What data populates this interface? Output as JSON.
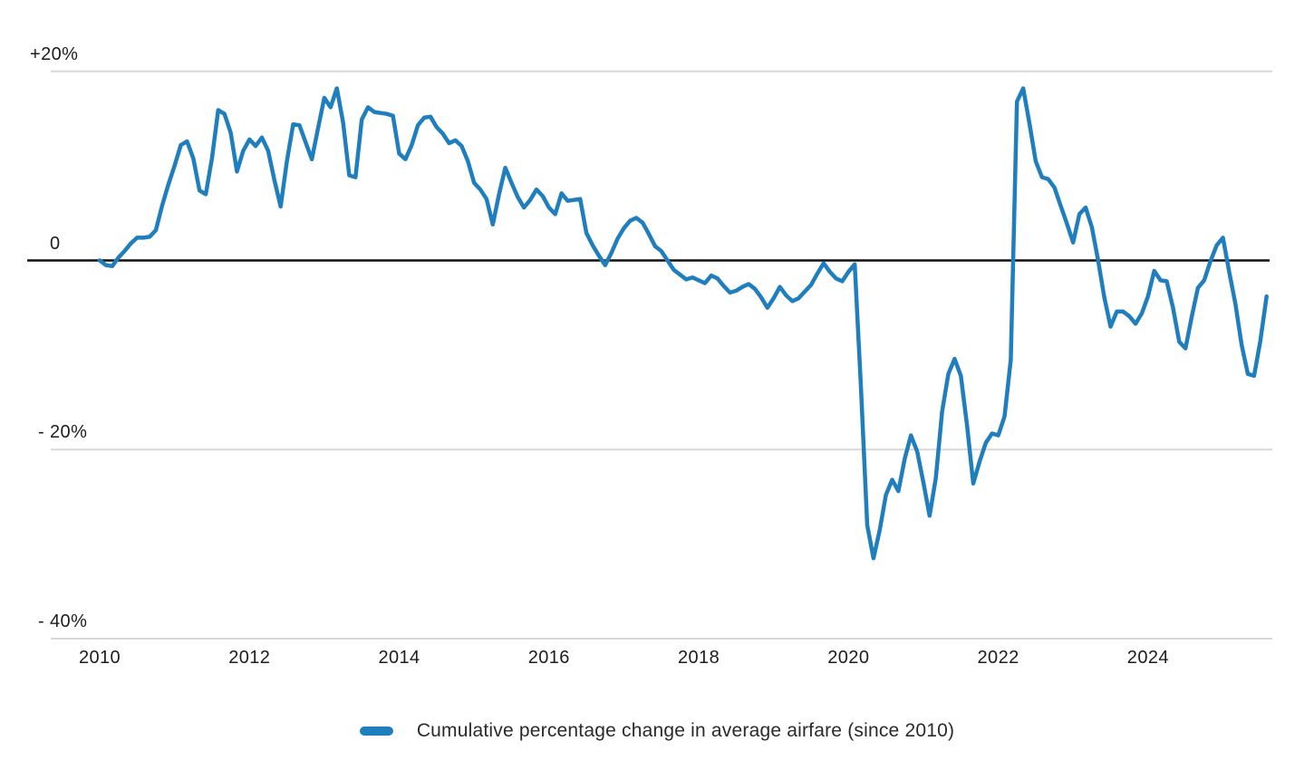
{
  "chart_data": {
    "type": "line",
    "title": "",
    "grid": "horizontal-only",
    "legend_position": "bottom-center",
    "x_axis": {
      "unit": "year",
      "ticks": [
        {
          "label": "2010",
          "month_index": 0
        },
        {
          "label": "2012",
          "month_index": 24
        },
        {
          "label": "2014",
          "month_index": 48
        },
        {
          "label": "2016",
          "month_index": 72
        },
        {
          "label": "2018",
          "month_index": 96
        },
        {
          "label": "2020",
          "month_index": 120
        },
        {
          "label": "2022",
          "month_index": 144
        },
        {
          "label": "2024",
          "month_index": 168
        }
      ]
    },
    "y_axis": {
      "unit": "percent",
      "range": [
        -42,
        22
      ],
      "ticks": [
        {
          "label": "+20%",
          "value": 20
        },
        {
          "label": "0",
          "value": 0
        },
        {
          "label": "- 20%",
          "value": -20
        },
        {
          "label": "- 40%",
          "value": -40
        }
      ]
    },
    "series": [
      {
        "name": "Cumulative percentage change in average airfare (since 2010)",
        "color": "#1f7ebd",
        "frequency": "monthly",
        "start_month": "2010-01",
        "end_month": "2025-08",
        "unit": "percent",
        "values": [
          0.0,
          -0.5,
          -0.6,
          0.3,
          1.0,
          1.8,
          2.4,
          2.4,
          2.5,
          3.2,
          5.8,
          8.0,
          10.0,
          12.2,
          12.6,
          10.8,
          7.4,
          7.0,
          10.8,
          15.9,
          15.5,
          13.5,
          9.4,
          11.6,
          12.8,
          12.1,
          13.0,
          11.6,
          8.5,
          5.7,
          10.5,
          14.4,
          14.3,
          12.5,
          10.7,
          14.0,
          17.2,
          16.2,
          18.2,
          14.6,
          9.0,
          8.8,
          14.9,
          16.2,
          15.7,
          15.6,
          15.5,
          15.3,
          11.3,
          10.7,
          12.2,
          14.3,
          15.1,
          15.2,
          14.1,
          13.4,
          12.4,
          12.7,
          12.1,
          10.5,
          8.2,
          7.5,
          6.5,
          3.8,
          7.0,
          9.8,
          8.2,
          6.7,
          5.6,
          6.4,
          7.5,
          6.8,
          5.6,
          4.9,
          7.1,
          6.3,
          6.4,
          6.5,
          2.9,
          1.6,
          0.5,
          -0.5,
          0.8,
          2.3,
          3.4,
          4.2,
          4.5,
          4.0,
          2.8,
          1.5,
          1.0,
          0.0,
          -1.0,
          -1.5,
          -2.0,
          -1.8,
          -2.1,
          -2.4,
          -1.6,
          -1.9,
          -2.7,
          -3.4,
          -3.2,
          -2.8,
          -2.5,
          -3.0,
          -3.9,
          -5.0,
          -4.0,
          -2.8,
          -3.7,
          -4.3,
          -4.0,
          -3.3,
          -2.6,
          -1.4,
          -0.3,
          -1.2,
          -1.9,
          -2.2,
          -1.2,
          -0.4,
          -13.5,
          -28.0,
          -31.5,
          -28.5,
          -24.8,
          -23.2,
          -24.4,
          -21.0,
          -18.5,
          -20.2,
          -23.5,
          -27.0,
          -23.0,
          -16.0,
          -12.0,
          -10.4,
          -12.2,
          -17.5,
          -23.6,
          -21.3,
          -19.3,
          -18.3,
          -18.5,
          -16.5,
          -10.5,
          16.8,
          18.2,
          14.5,
          10.5,
          8.8,
          8.6,
          7.7,
          5.8,
          3.9,
          1.9,
          4.9,
          5.6,
          3.5,
          0.0,
          -3.9,
          -7.0,
          -5.4,
          -5.4,
          -5.9,
          -6.7,
          -5.6,
          -3.8,
          -1.1,
          -2.1,
          -2.2,
          -5.0,
          -8.6,
          -9.3,
          -6.0,
          -2.9,
          -2.1,
          -0.1,
          1.6,
          2.4,
          -1.2,
          -4.6,
          -8.9,
          -12.0,
          -12.2,
          -8.5,
          -3.8
        ]
      }
    ]
  },
  "colors": {
    "line": "#1f7ebd",
    "gridline": "#d8d8d8",
    "zero_line": "#111111",
    "text": "#1d1d1d"
  },
  "legend": {
    "label": "Cumulative percentage change in average airfare (since 2010)",
    "swatch_color": "#1f7ebd"
  }
}
